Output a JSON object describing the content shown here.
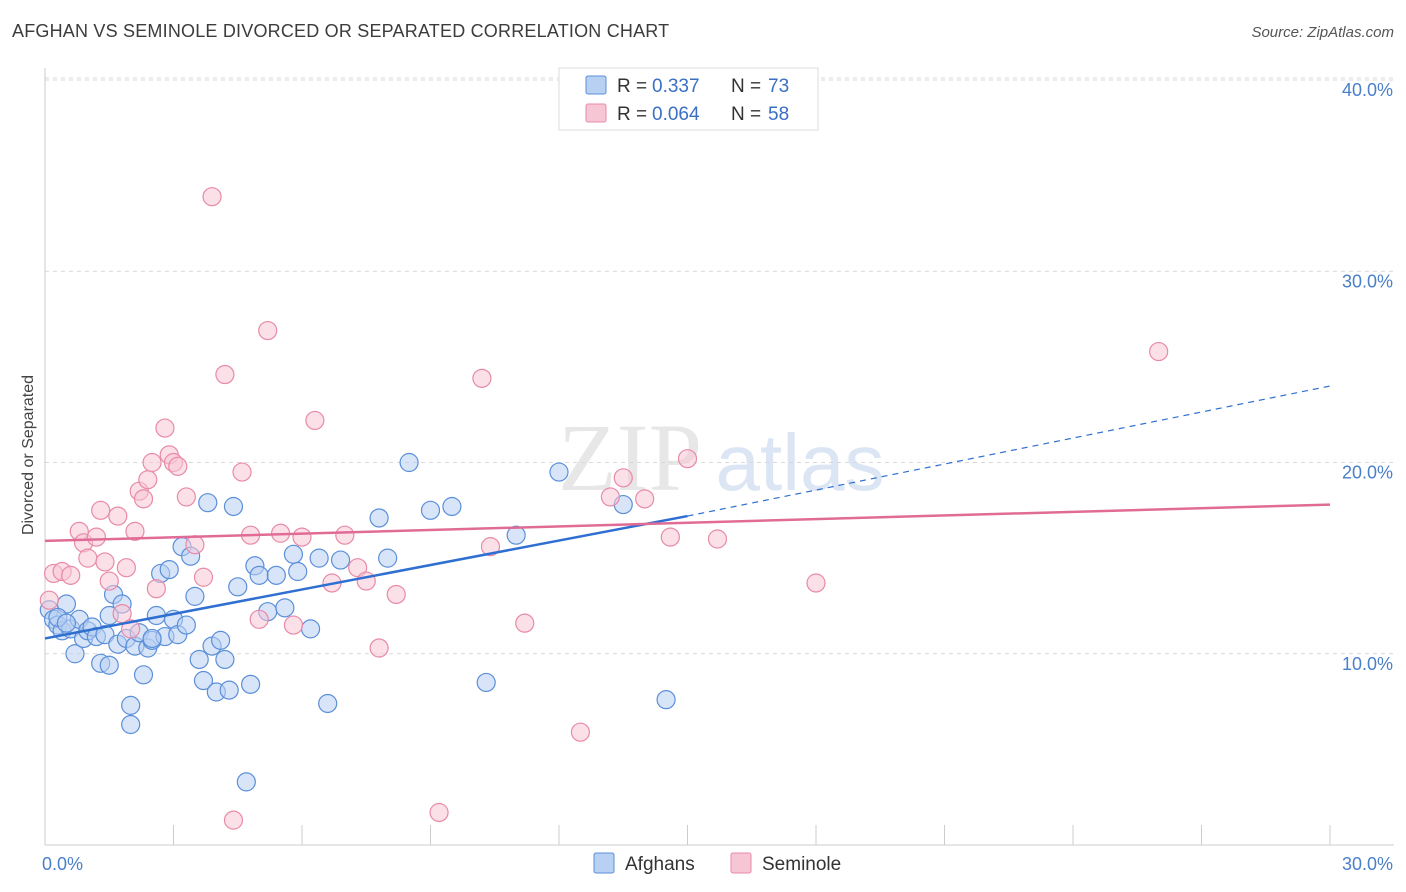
{
  "title": "AFGHAN VS SEMINOLE DIVORCED OR SEPARATED CORRELATION CHART",
  "source": "Source: ZipAtlas.com",
  "watermark": {
    "zip": "ZIP",
    "atlas": "atlas"
  },
  "colors": {
    "afghans": "#5b8fd9",
    "afghans_fill": "#b8d0f2",
    "afghans_line": "#2f6fd1",
    "seminole": "#e88aa8",
    "seminole_fill": "#f7c6d5",
    "seminole_line": "#e06c96",
    "grid": "#d9d9d9",
    "tick_label": "#4a7fc9"
  },
  "legend": {
    "rows": [
      {
        "r_label": "R =",
        "r_value": "0.337",
        "n_label": "N =",
        "n_value": "73",
        "series": "afghans"
      },
      {
        "r_label": "R =",
        "r_value": "0.064",
        "n_label": "N =",
        "n_value": "58",
        "series": "seminole"
      }
    ]
  },
  "bottom_legend": [
    {
      "label": "Afghans",
      "series": "afghans"
    },
    {
      "label": "Seminole",
      "series": "seminole"
    }
  ],
  "chart_data": {
    "type": "scatter",
    "title": "AFGHAN VS SEMINOLE DIVORCED OR SEPARATED CORRELATION CHART",
    "xlabel": "",
    "ylabel": "Divorced or Separated",
    "xlim": [
      0,
      30
    ],
    "ylim": [
      0,
      40
    ],
    "x_ticks": [
      {
        "value": 0,
        "label": "0.0%"
      },
      {
        "value": 30,
        "label": "30.0%"
      }
    ],
    "y_ticks": [
      {
        "value": 10,
        "label": "10.0%"
      },
      {
        "value": 20,
        "label": "20.0%"
      },
      {
        "value": 30,
        "label": "30.0%"
      },
      {
        "value": 40,
        "label": "40.0%"
      }
    ],
    "grid": true,
    "legend_position": "top-center",
    "series": [
      {
        "name": "Afghans",
        "key": "afghans",
        "r": 0.337,
        "n": 73,
        "trend": {
          "x": [
            0,
            15
          ],
          "y": [
            10.8,
            17.2
          ],
          "extended_to": [
            30,
            24.0
          ]
        },
        "points": [
          [
            0.1,
            12.3
          ],
          [
            0.2,
            11.8
          ],
          [
            0.3,
            11.5
          ],
          [
            0.4,
            11.2
          ],
          [
            0.5,
            12.6
          ],
          [
            0.6,
            11.3
          ],
          [
            0.7,
            10.0
          ],
          [
            0.8,
            11.8
          ],
          [
            0.9,
            10.8
          ],
          [
            1.0,
            11.2
          ],
          [
            1.1,
            11.4
          ],
          [
            1.2,
            10.9
          ],
          [
            1.3,
            9.5
          ],
          [
            1.4,
            11.0
          ],
          [
            1.5,
            9.4
          ],
          [
            1.6,
            13.1
          ],
          [
            1.7,
            10.5
          ],
          [
            1.8,
            12.6
          ],
          [
            1.9,
            10.8
          ],
          [
            2.0,
            7.3
          ],
          [
            2.0,
            6.3
          ],
          [
            2.1,
            10.4
          ],
          [
            2.2,
            11.1
          ],
          [
            2.3,
            8.9
          ],
          [
            2.4,
            10.3
          ],
          [
            2.5,
            10.7
          ],
          [
            2.6,
            12.0
          ],
          [
            2.7,
            14.2
          ],
          [
            2.8,
            10.9
          ],
          [
            2.9,
            14.4
          ],
          [
            3.0,
            11.8
          ],
          [
            3.1,
            11.0
          ],
          [
            3.2,
            15.6
          ],
          [
            3.3,
            11.5
          ],
          [
            3.4,
            15.1
          ],
          [
            3.5,
            13.0
          ],
          [
            3.6,
            9.7
          ],
          [
            3.7,
            8.6
          ],
          [
            3.8,
            17.9
          ],
          [
            3.9,
            10.4
          ],
          [
            4.0,
            8.0
          ],
          [
            4.1,
            10.7
          ],
          [
            4.2,
            9.7
          ],
          [
            4.3,
            8.1
          ],
          [
            4.4,
            17.7
          ],
          [
            4.5,
            13.5
          ],
          [
            4.7,
            3.3
          ],
          [
            4.8,
            8.4
          ],
          [
            4.9,
            14.6
          ],
          [
            5.0,
            14.1
          ],
          [
            5.2,
            12.2
          ],
          [
            5.4,
            14.1
          ],
          [
            5.6,
            12.4
          ],
          [
            5.8,
            15.2
          ],
          [
            5.9,
            14.3
          ],
          [
            6.2,
            11.3
          ],
          [
            6.4,
            15.0
          ],
          [
            6.6,
            7.4
          ],
          [
            6.9,
            14.9
          ],
          [
            7.8,
            17.1
          ],
          [
            8.0,
            15.0
          ],
          [
            8.5,
            20.0
          ],
          [
            9.0,
            17.5
          ],
          [
            9.5,
            17.7
          ],
          [
            10.3,
            8.5
          ],
          [
            11.0,
            16.2
          ],
          [
            12.0,
            19.5
          ],
          [
            13.5,
            17.8
          ],
          [
            14.5,
            7.6
          ],
          [
            0.3,
            11.9
          ],
          [
            0.5,
            11.6
          ],
          [
            1.5,
            12.0
          ],
          [
            2.5,
            10.8
          ]
        ]
      },
      {
        "name": "Seminole",
        "key": "seminole",
        "r": 0.064,
        "n": 58,
        "trend": {
          "x": [
            0,
            30
          ],
          "y": [
            15.9,
            17.8
          ]
        },
        "points": [
          [
            0.1,
            12.8
          ],
          [
            0.2,
            14.2
          ],
          [
            0.4,
            14.3
          ],
          [
            0.6,
            14.1
          ],
          [
            0.8,
            16.4
          ],
          [
            0.9,
            15.8
          ],
          [
            1.0,
            15.0
          ],
          [
            1.2,
            16.1
          ],
          [
            1.3,
            17.5
          ],
          [
            1.4,
            14.8
          ],
          [
            1.5,
            13.8
          ],
          [
            1.7,
            17.2
          ],
          [
            1.8,
            12.1
          ],
          [
            1.9,
            14.5
          ],
          [
            2.0,
            11.3
          ],
          [
            2.1,
            16.4
          ],
          [
            2.2,
            18.5
          ],
          [
            2.3,
            18.1
          ],
          [
            2.4,
            19.1
          ],
          [
            2.5,
            20.0
          ],
          [
            2.6,
            13.4
          ],
          [
            2.8,
            21.8
          ],
          [
            2.9,
            20.4
          ],
          [
            3.0,
            20.0
          ],
          [
            3.1,
            19.8
          ],
          [
            3.3,
            18.2
          ],
          [
            3.5,
            15.7
          ],
          [
            3.7,
            14.0
          ],
          [
            3.9,
            33.9
          ],
          [
            4.2,
            24.6
          ],
          [
            4.4,
            1.3
          ],
          [
            4.6,
            19.5
          ],
          [
            4.8,
            16.2
          ],
          [
            5.0,
            11.8
          ],
          [
            5.2,
            26.9
          ],
          [
            5.5,
            16.3
          ],
          [
            5.8,
            11.5
          ],
          [
            6.0,
            16.1
          ],
          [
            6.3,
            22.2
          ],
          [
            6.7,
            13.7
          ],
          [
            7.0,
            16.2
          ],
          [
            7.3,
            14.5
          ],
          [
            7.5,
            13.8
          ],
          [
            7.8,
            10.3
          ],
          [
            8.2,
            13.1
          ],
          [
            9.2,
            1.7
          ],
          [
            10.2,
            24.4
          ],
          [
            10.4,
            15.6
          ],
          [
            11.2,
            11.6
          ],
          [
            12.5,
            5.9
          ],
          [
            13.2,
            18.2
          ],
          [
            13.5,
            19.2
          ],
          [
            14.0,
            18.1
          ],
          [
            14.6,
            16.1
          ],
          [
            15.0,
            20.2
          ],
          [
            15.7,
            16.0
          ],
          [
            18.0,
            13.7
          ],
          [
            26.0,
            25.8
          ]
        ]
      }
    ]
  }
}
